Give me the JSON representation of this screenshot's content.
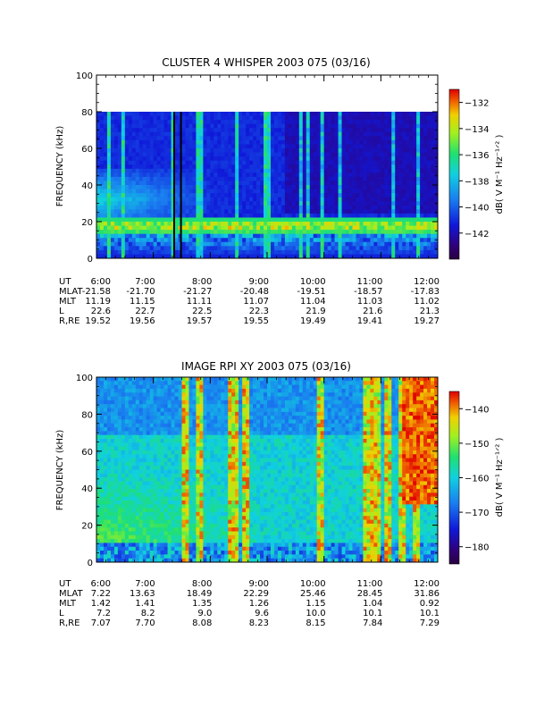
{
  "chart_data": [
    {
      "type": "heatmap",
      "title": "CLUSTER 4 WHISPER 2003 075 (03/16)",
      "ylabel": "FREQUENCY (kHz)",
      "ylim": [
        0,
        100
      ],
      "y_ticks": [
        "0",
        "20",
        "40",
        "60",
        "80",
        "100"
      ],
      "data_ymax": 80,
      "x_ticks": [
        "6:00",
        "7:00",
        "8:00",
        "9:00",
        "10:00",
        "11:00",
        "12:00"
      ],
      "colorbar": {
        "label": "dB( V M⁻¹ Hz⁻¹ᐟ² )",
        "range": [
          -144,
          -131
        ],
        "ticks": [
          "-132",
          "-134",
          "-136",
          "-138",
          "-140",
          "-142"
        ]
      },
      "ephemeris": [
        {
          "label": "UT",
          "values": [
            "6:00",
            "7:00",
            "8:00",
            "9:00",
            "10:00",
            "11:00",
            "12:00"
          ]
        },
        {
          "label": "MLAT",
          "values": [
            "-21.58",
            "-21.70",
            "-21.27",
            "-20.48",
            "-19.51",
            "-18.57",
            "-17.83"
          ]
        },
        {
          "label": "MLT",
          "values": [
            "11.19",
            "11.15",
            "11.11",
            "11.07",
            "11.04",
            "11.03",
            "11.02"
          ]
        },
        {
          "label": "L",
          "values": [
            "22.6",
            "22.7",
            "22.5",
            "22.3",
            "21.9",
            "21.6",
            "21.3"
          ]
        },
        {
          "label": "R,RE",
          "values": [
            "19.52",
            "19.56",
            "19.57",
            "19.55",
            "19.49",
            "19.41",
            "19.27"
          ]
        }
      ]
    },
    {
      "type": "heatmap",
      "title": "IMAGE RPI XY 2003 075 (03/16)",
      "ylabel": "FREQUENCY (kHz)",
      "ylim": [
        0,
        100
      ],
      "y_ticks": [
        "0",
        "20",
        "40",
        "60",
        "80",
        "100"
      ],
      "data_ymax": 100,
      "x_ticks": [
        "6:00",
        "7:00",
        "8:00",
        "9:00",
        "10:00",
        "11:00",
        "12:00"
      ],
      "colorbar": {
        "label": "dB( V M⁻¹ Hz⁻¹ᐟ² )",
        "range": [
          -185,
          -135
        ],
        "ticks": [
          "-140",
          "-150",
          "-160",
          "-170",
          "-180"
        ]
      },
      "ephemeris": [
        {
          "label": "UT",
          "values": [
            "6:00",
            "7:00",
            "8:00",
            "9:00",
            "10:00",
            "11:00",
            "12:00"
          ]
        },
        {
          "label": "MLAT",
          "values": [
            "7.22",
            "13.63",
            "18.49",
            "22.29",
            "25.46",
            "28.45",
            "31.86"
          ]
        },
        {
          "label": "MLT",
          "values": [
            "1.42",
            "1.41",
            "1.35",
            "1.26",
            "1.15",
            "1.04",
            "0.92"
          ]
        },
        {
          "label": "L",
          "values": [
            "7.2",
            "8.2",
            "9.0",
            "9.6",
            "10.0",
            "10.1",
            "10.1"
          ]
        },
        {
          "label": "R,RE",
          "values": [
            "7.07",
            "7.70",
            "8.08",
            "8.23",
            "8.15",
            "7.84",
            "7.29"
          ]
        }
      ]
    }
  ]
}
